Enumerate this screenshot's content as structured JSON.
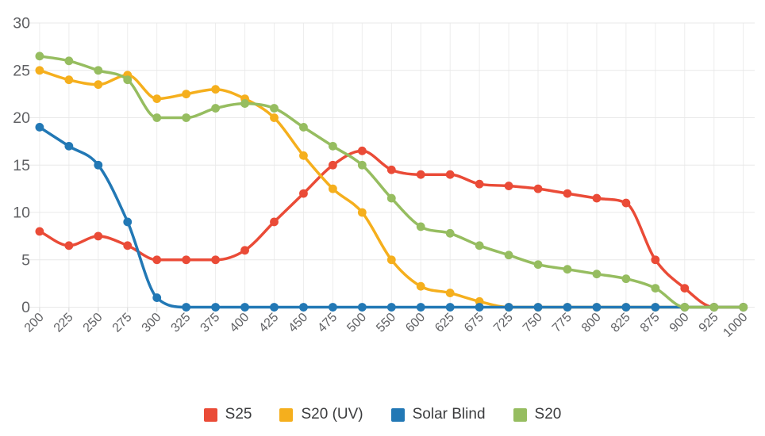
{
  "chart_data": {
    "type": "line",
    "title": "",
    "xlabel": "",
    "ylabel": "",
    "categories": [
      "200",
      "225",
      "250",
      "275",
      "300",
      "325",
      "375",
      "400",
      "425",
      "450",
      "475",
      "500",
      "550",
      "600",
      "625",
      "675",
      "725",
      "750",
      "775",
      "800",
      "825",
      "875",
      "900",
      "925",
      "1000"
    ],
    "series": [
      {
        "name": "S25",
        "color": "#EA4B37",
        "values": [
          8,
          6.5,
          7.5,
          6.5,
          5,
          5,
          5,
          6,
          9,
          12,
          15,
          16.5,
          14.5,
          14,
          14,
          13,
          12.8,
          12.5,
          12,
          11.5,
          11,
          5,
          2,
          0,
          0
        ]
      },
      {
        "name": "S20 (UV)",
        "color": "#F5AF1D",
        "values": [
          25,
          24,
          23.5,
          24.5,
          22,
          22.5,
          23,
          22,
          20,
          16,
          12.5,
          10,
          5,
          2.2,
          1.5,
          0.6,
          0,
          0,
          0,
          0,
          0,
          0,
          0,
          0,
          0
        ]
      },
      {
        "name": "Solar Blind",
        "color": "#2278B5",
        "values": [
          19,
          17,
          15,
          9,
          1,
          0,
          0,
          0,
          0,
          0,
          0,
          0,
          0,
          0,
          0,
          0,
          0,
          0,
          0,
          0,
          0,
          0,
          0,
          0,
          0
        ]
      },
      {
        "name": "S20",
        "color": "#96BD60",
        "values": [
          26.5,
          26,
          25,
          24,
          20,
          20,
          21,
          21.5,
          21,
          19,
          17,
          15,
          11.5,
          8.5,
          7.8,
          6.5,
          5.5,
          4.5,
          4,
          3.5,
          3,
          2,
          0,
          0,
          0
        ]
      }
    ],
    "y_ticks": [
      0,
      5,
      10,
      15,
      20,
      25,
      30
    ],
    "ylim": [
      0,
      30
    ],
    "grid": true,
    "smooth": true,
    "marker": "circle",
    "legend_position": "bottom"
  },
  "style": {
    "grid_color": "#E8E8E8",
    "vgrid_color": "#EDEDED",
    "tick_color": "#D5D5D5",
    "axis_label_color": "#606164",
    "legend_text_color": "#3b3c3e"
  }
}
